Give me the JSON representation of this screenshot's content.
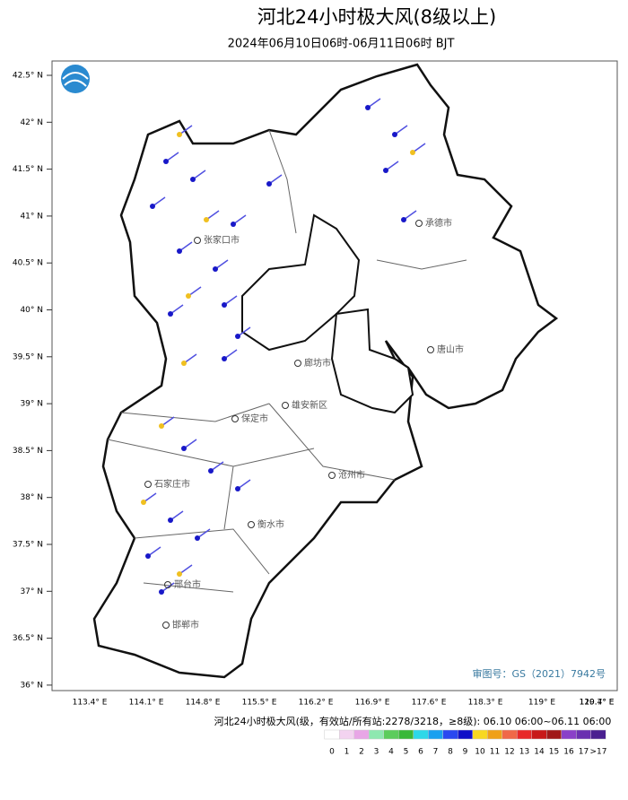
{
  "title": "河北24小时极大风(8级以上)",
  "subtitle": "2024年06月10日06时-06月11日06时 BJT",
  "lat_ticks": [
    "42.5° N",
    "42° N",
    "41.5° N",
    "41° N",
    "40.5° N",
    "40° N",
    "39.5° N",
    "39° N",
    "38.5° N",
    "38° N",
    "37.5° N",
    "37° N",
    "36.5° N",
    "36° N"
  ],
  "lon_ticks": [
    "113.4° E",
    "114.1° E",
    "114.8° E",
    "115.5° E",
    "116.2° E",
    "116.9° E",
    "117.6° E",
    "118.3° E",
    "119° E",
    "119.7° E",
    "120.4° E"
  ],
  "cities": [
    "张家口市",
    "承德市",
    "唐山市",
    "廊坊市",
    "雄安新区",
    "保定市",
    "沧州市",
    "石家庄市",
    "衡水市",
    "邢台市",
    "邯郸市"
  ],
  "review_number": "审图号：GS（2021）7942号",
  "legend": {
    "caption": "河北24小时极大风(级，有效站/所有站:2278/3218，≥8级): 06.10 06:00~06.11 06:00",
    "items": [
      {
        "label": "0",
        "color": "#ffffff"
      },
      {
        "label": "1",
        "color": "#f3d3f0"
      },
      {
        "label": "2",
        "color": "#e8a6e6"
      },
      {
        "label": "3",
        "color": "#8ee8b0"
      },
      {
        "label": "4",
        "color": "#5ccc5c"
      },
      {
        "label": "5",
        "color": "#38b838"
      },
      {
        "label": "6",
        "color": "#2ed8e8"
      },
      {
        "label": "7",
        "color": "#1aa0f0"
      },
      {
        "label": "8",
        "color": "#2a48f0"
      },
      {
        "label": "9",
        "color": "#1010c8"
      },
      {
        "label": "10",
        "color": "#f8d820"
      },
      {
        "label": "11",
        "color": "#f0a018"
      },
      {
        "label": "12",
        "color": "#f06848"
      },
      {
        "label": "13",
        "color": "#e82828"
      },
      {
        "label": "14",
        "color": "#c81818"
      },
      {
        "label": "15",
        "color": "#a01818"
      },
      {
        "label": "16",
        "color": "#8a40c8"
      },
      {
        "label": "17",
        "color": "#6a30b0"
      },
      {
        "label": ">17",
        "color": "#4a2090"
      }
    ]
  }
}
